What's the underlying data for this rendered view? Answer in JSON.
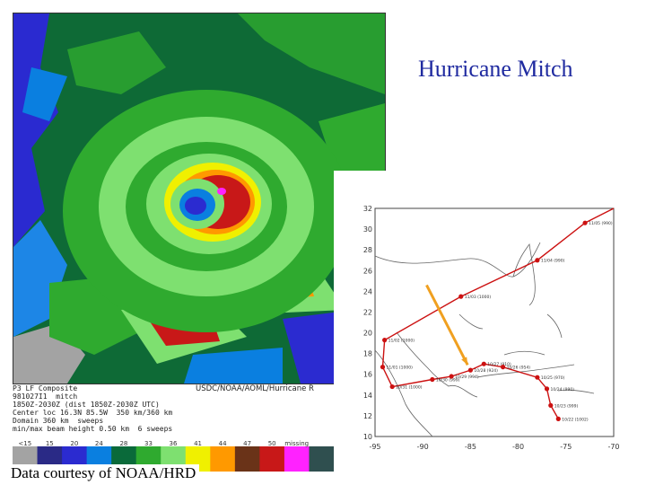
{
  "title": "Hurricane Mitch",
  "footer": "Data courtesy of NOAA/HRD",
  "radar": {
    "credit": "USDC/NOAA/AOML/Hurricane R",
    "info_lines": [
      "P3 LF Composite",
      "981027I1  mitch",
      "1850Z-2030Z (dist 1850Z-2030Z UTC)",
      "Center loc 16.3N 85.5W  350 km/360 km",
      "Domain 360 km  sweeps",
      "min/max beam height 0.50 km  6 sweeps"
    ],
    "dbz_labels": [
      "<15",
      "15",
      "20",
      "24",
      "28",
      "33",
      "36",
      "41",
      "44",
      "47",
      "50",
      "missing"
    ],
    "dbz_colors": [
      "#a3a3a3",
      "#2a2a86",
      "#2b2bd0",
      "#0a7fe0",
      "#0a6a3a",
      "#2faa2f",
      "#7ee070",
      "#f0f000",
      "#ff9900",
      "#6a3318",
      "#c81818",
      "#ff22ff",
      "#2f4f4f"
    ]
  },
  "track_map": {
    "x_ticks": [
      "-95",
      "-90",
      "-85",
      "-80",
      "-75",
      "-70"
    ],
    "y_ticks": [
      "10",
      "12",
      "14",
      "16",
      "18",
      "20",
      "22",
      "24",
      "26",
      "28",
      "30",
      "32"
    ],
    "point_labels": [
      "11/05 (990)",
      "11/04 (990)",
      "11/03 (1000)",
      "11/02 (1000)",
      "11/01 (1000)",
      "10/31 (1000)",
      "10/30 (999)",
      "10/29 (994)",
      "10/28 (924)",
      "10/27 (910)",
      "10/26 (954)",
      "10/25 (970)",
      "10/24 (990)",
      "10/23 (999)",
      "10/22 (1002)"
    ],
    "track_color": "#cc1111",
    "arrow_color": "#f0a020"
  },
  "colors": {
    "title": "#1f2aa0"
  }
}
